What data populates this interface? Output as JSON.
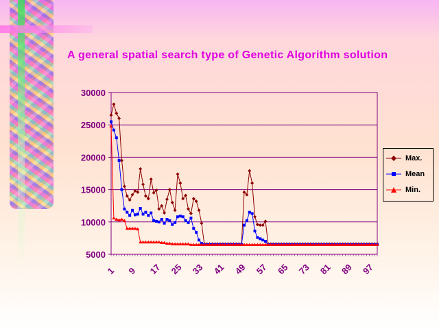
{
  "slide": {
    "title": "A general spatial search type of Genetic Algorithm solution"
  },
  "chart_data": {
    "type": "line",
    "title": "A general spatial search type of Genetic Algorithm solution",
    "xlabel": "",
    "ylabel": "",
    "ylim": [
      5000,
      30000
    ],
    "yticks": [
      5000,
      10000,
      15000,
      20000,
      25000,
      30000
    ],
    "ytick_labels": [
      "5000",
      "10000",
      "15000",
      "20000",
      "25000",
      "30000"
    ],
    "x": [
      1,
      2,
      3,
      4,
      5,
      6,
      7,
      8,
      9,
      10,
      11,
      12,
      13,
      14,
      15,
      16,
      17,
      18,
      19,
      20,
      21,
      22,
      23,
      24,
      25,
      26,
      27,
      28,
      29,
      30,
      31,
      32,
      33,
      34,
      35,
      36,
      37,
      38,
      39,
      40,
      41,
      42,
      43,
      44,
      45,
      46,
      47,
      48,
      49,
      50,
      51,
      52,
      53,
      54,
      55,
      56,
      57,
      58,
      59,
      60,
      61,
      62,
      63,
      64,
      65,
      66,
      67,
      68,
      69,
      70,
      71,
      72,
      73,
      74,
      75,
      76,
      77,
      78,
      79,
      80,
      81,
      82,
      83,
      84,
      85,
      86,
      87,
      88,
      89,
      90,
      91,
      92,
      93,
      94,
      95,
      96,
      97,
      98,
      99,
      100,
      101
    ],
    "xtick_labels": [
      "1",
      "9",
      "17",
      "25",
      "33",
      "41",
      "49",
      "57",
      "65",
      "73",
      "81",
      "89",
      "97"
    ],
    "grid": true,
    "legend_position": "right",
    "series": [
      {
        "name": "Max.",
        "color": "#8b0000",
        "marker": "diamond",
        "values": [
          26500,
          28200,
          26800,
          26000,
          19500,
          15500,
          14000,
          13400,
          14200,
          14800,
          14600,
          18200,
          15800,
          14000,
          13600,
          16600,
          14500,
          14900,
          12000,
          12500,
          11400,
          13500,
          15000,
          13000,
          11800,
          17400,
          16000,
          13600,
          14100,
          12000,
          11300,
          13600,
          13200,
          11800,
          9800,
          6600,
          6600,
          6600,
          6600,
          6600,
          6600,
          6600,
          6600,
          6600,
          6600,
          6600,
          6600,
          6600,
          6600,
          6600,
          14600,
          14200,
          17900,
          16000,
          10800,
          9600,
          9500,
          9500,
          10100,
          6600,
          6600,
          6600,
          6600,
          6600,
          6600,
          6600,
          6600,
          6600,
          6600,
          6600,
          6600,
          6600,
          6600,
          6600,
          6600,
          6600,
          6600,
          6600,
          6600,
          6600,
          6600,
          6600,
          6600,
          6600,
          6600,
          6600,
          6600,
          6600,
          6600,
          6600,
          6600,
          6600,
          6600,
          6600,
          6600,
          6600,
          6600,
          6600,
          6600,
          6600,
          6600
        ]
      },
      {
        "name": "Mean",
        "color": "#0000ff",
        "marker": "square",
        "values": [
          25500,
          24200,
          23000,
          19500,
          15000,
          12000,
          11500,
          11000,
          11800,
          11100,
          11200,
          12100,
          11200,
          11500,
          11000,
          11400,
          10200,
          10100,
          10000,
          10400,
          9800,
          10400,
          10200,
          9600,
          9900,
          10800,
          10900,
          10800,
          10200,
          9900,
          10600,
          9000,
          8400,
          7200,
          6700,
          6500,
          6500,
          6500,
          6500,
          6500,
          6500,
          6500,
          6500,
          6500,
          6500,
          6500,
          6500,
          6500,
          6500,
          6500,
          9500,
          10200,
          11500,
          11300,
          8600,
          7600,
          7400,
          7200,
          7000,
          6500,
          6500,
          6500,
          6500,
          6500,
          6500,
          6500,
          6500,
          6500,
          6500,
          6500,
          6500,
          6500,
          6500,
          6500,
          6500,
          6500,
          6500,
          6500,
          6500,
          6500,
          6500,
          6500,
          6500,
          6500,
          6500,
          6500,
          6500,
          6500,
          6500,
          6500,
          6500,
          6500,
          6500,
          6500,
          6500,
          6500,
          6500,
          6500,
          6500,
          6500,
          6500
        ]
      },
      {
        "name": "Min.",
        "color": "#ff0000",
        "marker": "triangle",
        "values": [
          24800,
          10600,
          10400,
          10300,
          10400,
          10200,
          9000,
          9000,
          9000,
          9000,
          8900,
          6900,
          6900,
          6900,
          6900,
          6900,
          6900,
          6900,
          6900,
          6800,
          6800,
          6700,
          6700,
          6600,
          6600,
          6600,
          6600,
          6600,
          6600,
          6600,
          6500,
          6500,
          6500,
          6500,
          6500,
          6500,
          6500,
          6500,
          6500,
          6500,
          6500,
          6500,
          6500,
          6500,
          6500,
          6500,
          6500,
          6500,
          6500,
          6500,
          6500,
          6500,
          6500,
          6500,
          6500,
          6500,
          6500,
          6500,
          6500,
          6500,
          6500,
          6500,
          6500,
          6500,
          6500,
          6500,
          6500,
          6500,
          6500,
          6500,
          6500,
          6500,
          6500,
          6500,
          6500,
          6500,
          6500,
          6500,
          6500,
          6500,
          6500,
          6500,
          6500,
          6500,
          6500,
          6500,
          6500,
          6500,
          6500,
          6500,
          6500,
          6500,
          6500,
          6500,
          6500,
          6500,
          6500,
          6500,
          6500,
          6500,
          6500
        ]
      }
    ]
  }
}
